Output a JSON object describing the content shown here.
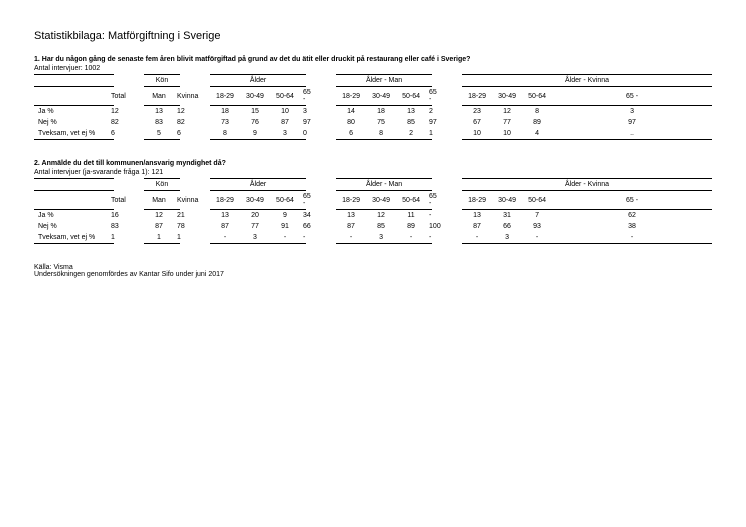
{
  "title": "Statistikbilaga: Matförgiftning i Sverige",
  "q1": {
    "question": "1. Har du någon gång de senaste fem åren blivit matförgiftad på grund av det du ätit eller druckit på restaurang eller café i Sverige?",
    "sub": "Antal intervjuer: 1002",
    "groups": [
      "",
      "Kön",
      "Ålder",
      "Ålder - Man",
      "Ålder - Kvinna"
    ],
    "cols": [
      "Total",
      "Man",
      "Kvinna",
      "18-29",
      "30-49",
      "50-64",
      "65 -",
      "18-29",
      "30-49",
      "50-64",
      "65 -",
      "18-29",
      "30-49",
      "50-64",
      "65 -"
    ],
    "rows": [
      {
        "label": "Ja %",
        "v": [
          "12",
          "13",
          "12",
          "18",
          "15",
          "10",
          "3",
          "14",
          "18",
          "13",
          "2",
          "23",
          "12",
          "8",
          "3"
        ]
      },
      {
        "label": "Nej %",
        "v": [
          "82",
          "83",
          "82",
          "73",
          "76",
          "87",
          "97",
          "80",
          "75",
          "85",
          "97",
          "67",
          "77",
          "89",
          "97"
        ]
      },
      {
        "label": "Tveksam, vet ej %",
        "v": [
          "6",
          "5",
          "6",
          "8",
          "9",
          "3",
          "0",
          "6",
          "8",
          "2",
          "1",
          "10",
          "10",
          "4",
          ".."
        ]
      }
    ]
  },
  "q2": {
    "question": "2. Anmälde du det till kommunen/ansvarig myndighet då?",
    "sub": "Antal intervjuer (ja-svarande fråga 1): 121",
    "groups": [
      "",
      "Kön",
      "Ålder",
      "Ålder - Man",
      "Ålder - Kvinna"
    ],
    "cols": [
      "Total",
      "Man",
      "Kvinna",
      "18-29",
      "30-49",
      "50-64",
      "65 -",
      "18-29",
      "30-49",
      "50-64",
      "65 -",
      "18-29",
      "30-49",
      "50-64",
      "65 -"
    ],
    "rows": [
      {
        "label": "Ja %",
        "v": [
          "16",
          "12",
          "21",
          "13",
          "20",
          "9",
          "34",
          "13",
          "12",
          "11",
          "-",
          "13",
          "31",
          "7",
          "62"
        ]
      },
      {
        "label": "Nej %",
        "v": [
          "83",
          "87",
          "78",
          "87",
          "77",
          "91",
          "66",
          "87",
          "85",
          "89",
          "100",
          "87",
          "66",
          "93",
          "38"
        ]
      },
      {
        "label": "Tveksam, vet ej %",
        "v": [
          "1",
          "1",
          "1",
          "-",
          "3",
          "-",
          "-",
          "-",
          "3",
          "-",
          "-",
          "-",
          "3",
          "-",
          "-"
        ]
      }
    ]
  },
  "footer1": "Källa: Visma",
  "footer2": "Undersökningen genomfördes av Kantar Sifo under juni 2017"
}
